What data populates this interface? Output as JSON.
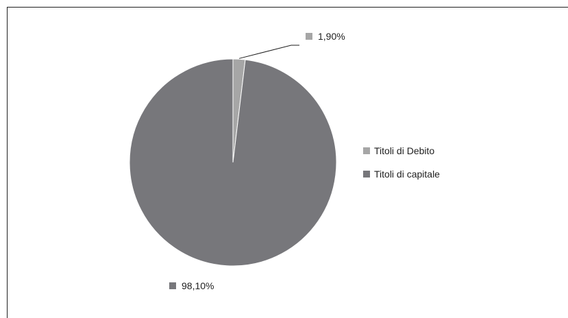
{
  "chart_data": {
    "type": "pie",
    "categories": [
      "Titoli di Debito",
      "Titoli di capitale"
    ],
    "values": [
      1.9,
      98.1
    ],
    "data_labels": [
      "1,90%",
      "98,10%"
    ],
    "colors": [
      "#a6a6a6",
      "#77777b"
    ],
    "legend_position": "right",
    "title": ""
  }
}
